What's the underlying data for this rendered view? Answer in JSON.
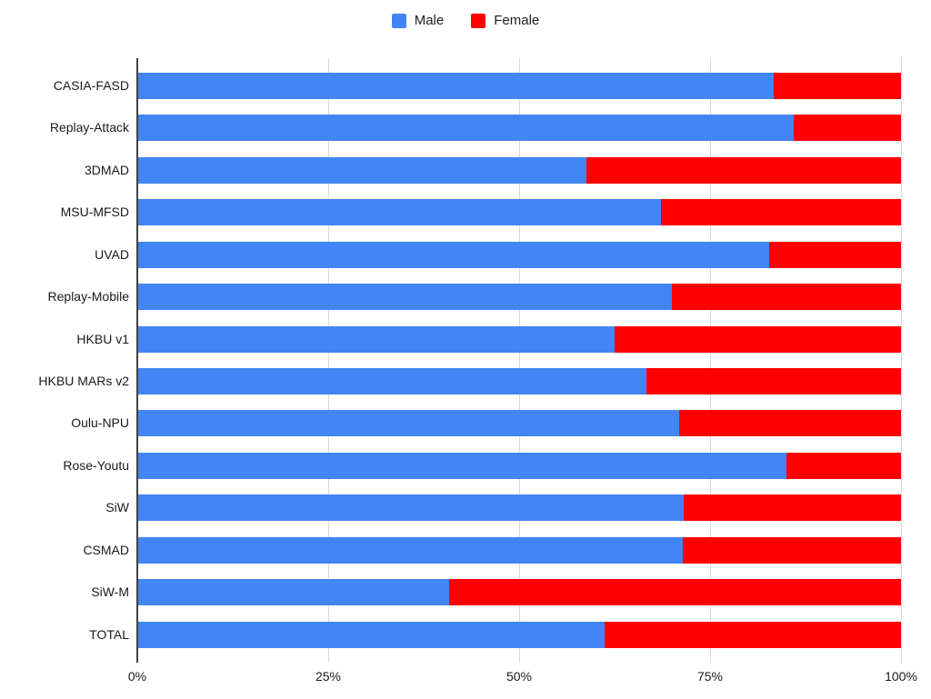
{
  "chart_data": {
    "type": "bar",
    "orientation": "horizontal",
    "stacked": true,
    "stack_total": 100,
    "title": "",
    "xlabel": "",
    "ylabel": "",
    "grid": true,
    "categories": [
      "CASIA-FASD",
      "Replay-Attack",
      "3DMAD",
      "MSU-MFSD",
      "UVAD",
      "Replay-Mobile",
      "HKBU v1",
      "HKBU MARs v2",
      "Oulu-NPU",
      "Rose-Youtu",
      "SiW",
      "CSMAD",
      "SiW-M",
      "TOTAL"
    ],
    "series": [
      {
        "name": "Male",
        "color": "#4285F4",
        "values": [
          83.3,
          86.0,
          58.8,
          68.6,
          82.7,
          70.0,
          62.5,
          66.7,
          70.9,
          85.0,
          71.5,
          71.4,
          40.8,
          61.2
        ]
      },
      {
        "name": "Female",
        "color": "#FF0000",
        "values": [
          16.7,
          14.0,
          41.2,
          31.4,
          17.3,
          30.0,
          37.5,
          33.3,
          29.1,
          15.0,
          28.5,
          28.6,
          59.2,
          38.8
        ]
      }
    ],
    "x_axis": {
      "min": 0,
      "max": 100,
      "tick_labels": [
        "0%",
        "25%",
        "50%",
        "75%",
        "100%"
      ],
      "tick_values": [
        0,
        25,
        50,
        75,
        100
      ]
    },
    "legend": {
      "position": "top",
      "entries": [
        {
          "label": "Male",
          "color": "#4285F4"
        },
        {
          "label": "Female",
          "color": "#FF0000"
        }
      ]
    }
  },
  "colors": {
    "male": "#4285F4",
    "female": "#FF0000",
    "gridline": "#d9d9d9",
    "axis_line": "#424242",
    "text": "#1a1a1a"
  }
}
